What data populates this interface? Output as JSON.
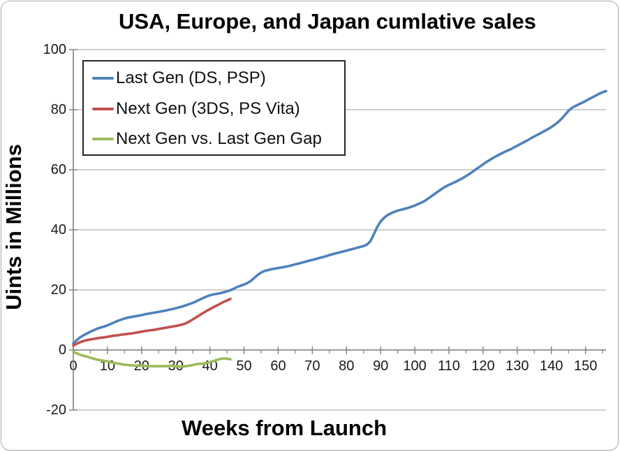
{
  "chart_data": {
    "type": "line",
    "title": "USA, Europe, and Japan cumlative sales",
    "xlabel": "Weeks from Launch",
    "ylabel": "Uints in Millions",
    "xlim": [
      0,
      156
    ],
    "ylim": [
      -20,
      100
    ],
    "x_ticks": [
      0,
      10,
      20,
      30,
      40,
      50,
      60,
      70,
      80,
      90,
      100,
      110,
      120,
      130,
      140,
      150
    ],
    "x_minor_tick_step": 5,
    "y_ticks": [
      -20,
      0,
      20,
      40,
      60,
      80,
      100
    ],
    "grid": "horizontal-only",
    "legend_position": "top-left-inside",
    "background": "#FFFFFF",
    "axis_color": "#7F7F7F",
    "gridline_color": "#B3B3B3",
    "series": [
      {
        "name": "Last Gen (DS, PSP)",
        "color": "#4F81BD",
        "points": [
          [
            0,
            2.2
          ],
          [
            1,
            3.3
          ],
          [
            2,
            4.2
          ],
          [
            3,
            4.9
          ],
          [
            4,
            5.5
          ],
          [
            5,
            6.1
          ],
          [
            6,
            6.6
          ],
          [
            7,
            7.1
          ],
          [
            8,
            7.5
          ],
          [
            9,
            7.8
          ],
          [
            10,
            8.2
          ],
          [
            11,
            8.7
          ],
          [
            12,
            9.2
          ],
          [
            13,
            9.7
          ],
          [
            14,
            10.1
          ],
          [
            15,
            10.5
          ],
          [
            16,
            10.8
          ],
          [
            17,
            11.0
          ],
          [
            18,
            11.2
          ],
          [
            19,
            11.4
          ],
          [
            20,
            11.6
          ],
          [
            21,
            11.9
          ],
          [
            22,
            12.1
          ],
          [
            23,
            12.3
          ],
          [
            24,
            12.5
          ],
          [
            25,
            12.7
          ],
          [
            26,
            12.9
          ],
          [
            27,
            13.1
          ],
          [
            28,
            13.4
          ],
          [
            29,
            13.6
          ],
          [
            30,
            13.9
          ],
          [
            31,
            14.2
          ],
          [
            32,
            14.5
          ],
          [
            33,
            14.9
          ],
          [
            34,
            15.3
          ],
          [
            35,
            15.7
          ],
          [
            36,
            16.2
          ],
          [
            37,
            16.8
          ],
          [
            38,
            17.3
          ],
          [
            39,
            17.8
          ],
          [
            40,
            18.2
          ],
          [
            41,
            18.5
          ],
          [
            42,
            18.7
          ],
          [
            43,
            18.9
          ],
          [
            44,
            19.2
          ],
          [
            45,
            19.5
          ],
          [
            46,
            19.9
          ],
          [
            47,
            20.4
          ],
          [
            48,
            21.0
          ],
          [
            49,
            21.4
          ],
          [
            50,
            21.8
          ],
          [
            51,
            22.3
          ],
          [
            52,
            23.0
          ],
          [
            53,
            24.0
          ],
          [
            54,
            25.0
          ],
          [
            55,
            25.8
          ],
          [
            56,
            26.3
          ],
          [
            57,
            26.6
          ],
          [
            58,
            26.9
          ],
          [
            59,
            27.1
          ],
          [
            60,
            27.3
          ],
          [
            61,
            27.5
          ],
          [
            62,
            27.7
          ],
          [
            63,
            27.9
          ],
          [
            64,
            28.2
          ],
          [
            65,
            28.5
          ],
          [
            66,
            28.8
          ],
          [
            67,
            29.1
          ],
          [
            68,
            29.4
          ],
          [
            69,
            29.7
          ],
          [
            70,
            30.0
          ],
          [
            71,
            30.3
          ],
          [
            72,
            30.6
          ],
          [
            73,
            30.9
          ],
          [
            74,
            31.2
          ],
          [
            75,
            31.6
          ],
          [
            76,
            31.9
          ],
          [
            77,
            32.2
          ],
          [
            78,
            32.5
          ],
          [
            79,
            32.8
          ],
          [
            80,
            33.1
          ],
          [
            81,
            33.4
          ],
          [
            82,
            33.7
          ],
          [
            83,
            34.0
          ],
          [
            84,
            34.3
          ],
          [
            85,
            34.6
          ],
          [
            86,
            35.1
          ],
          [
            87,
            36.2
          ],
          [
            88,
            38.5
          ],
          [
            89,
            41.0
          ],
          [
            90,
            42.8
          ],
          [
            91,
            44.0
          ],
          [
            92,
            44.9
          ],
          [
            93,
            45.5
          ],
          [
            94,
            46.0
          ],
          [
            95,
            46.4
          ],
          [
            96,
            46.7
          ],
          [
            97,
            47.0
          ],
          [
            98,
            47.3
          ],
          [
            99,
            47.7
          ],
          [
            100,
            48.1
          ],
          [
            101,
            48.6
          ],
          [
            102,
            49.1
          ],
          [
            103,
            49.7
          ],
          [
            104,
            50.5
          ],
          [
            105,
            51.3
          ],
          [
            106,
            52.1
          ],
          [
            107,
            52.9
          ],
          [
            108,
            53.7
          ],
          [
            109,
            54.4
          ],
          [
            110,
            55.0
          ],
          [
            111,
            55.5
          ],
          [
            112,
            56.0
          ],
          [
            113,
            56.6
          ],
          [
            114,
            57.2
          ],
          [
            115,
            57.9
          ],
          [
            116,
            58.6
          ],
          [
            117,
            59.4
          ],
          [
            118,
            60.2
          ],
          [
            119,
            61.0
          ],
          [
            120,
            61.8
          ],
          [
            121,
            62.6
          ],
          [
            122,
            63.3
          ],
          [
            123,
            64.0
          ],
          [
            124,
            64.6
          ],
          [
            125,
            65.2
          ],
          [
            126,
            65.8
          ],
          [
            127,
            66.3
          ],
          [
            128,
            66.8
          ],
          [
            129,
            67.4
          ],
          [
            130,
            68.0
          ],
          [
            131,
            68.6
          ],
          [
            132,
            69.2
          ],
          [
            133,
            69.8
          ],
          [
            134,
            70.5
          ],
          [
            135,
            71.1
          ],
          [
            136,
            71.7
          ],
          [
            137,
            72.3
          ],
          [
            138,
            72.9
          ],
          [
            139,
            73.5
          ],
          [
            140,
            74.2
          ],
          [
            141,
            75.0
          ],
          [
            142,
            75.9
          ],
          [
            143,
            77.0
          ],
          [
            144,
            78.3
          ],
          [
            145,
            79.6
          ],
          [
            146,
            80.6
          ],
          [
            147,
            81.2
          ],
          [
            148,
            81.8
          ],
          [
            149,
            82.3
          ],
          [
            150,
            82.9
          ],
          [
            151,
            83.5
          ],
          [
            152,
            84.1
          ],
          [
            153,
            84.7
          ],
          [
            154,
            85.3
          ],
          [
            155,
            85.8
          ],
          [
            156,
            86.2
          ]
        ]
      },
      {
        "name": "Next Gen (3DS, PS Vita)",
        "color": "#C0504D",
        "points": [
          [
            0,
            1.5
          ],
          [
            1,
            2.1
          ],
          [
            2,
            2.6
          ],
          [
            3,
            3.0
          ],
          [
            4,
            3.3
          ],
          [
            5,
            3.5
          ],
          [
            6,
            3.7
          ],
          [
            7,
            3.9
          ],
          [
            8,
            4.1
          ],
          [
            9,
            4.2
          ],
          [
            10,
            4.4
          ],
          [
            11,
            4.6
          ],
          [
            12,
            4.8
          ],
          [
            13,
            4.9
          ],
          [
            14,
            5.1
          ],
          [
            15,
            5.2
          ],
          [
            16,
            5.4
          ],
          [
            17,
            5.5
          ],
          [
            18,
            5.7
          ],
          [
            19,
            5.9
          ],
          [
            20,
            6.1
          ],
          [
            21,
            6.3
          ],
          [
            22,
            6.5
          ],
          [
            23,
            6.6
          ],
          [
            24,
            6.8
          ],
          [
            25,
            7.0
          ],
          [
            26,
            7.2
          ],
          [
            27,
            7.4
          ],
          [
            28,
            7.6
          ],
          [
            29,
            7.8
          ],
          [
            30,
            8.0
          ],
          [
            31,
            8.2
          ],
          [
            32,
            8.5
          ],
          [
            33,
            8.9
          ],
          [
            34,
            9.5
          ],
          [
            35,
            10.2
          ],
          [
            36,
            10.9
          ],
          [
            37,
            11.6
          ],
          [
            38,
            12.3
          ],
          [
            39,
            13.0
          ],
          [
            40,
            13.6
          ],
          [
            41,
            14.2
          ],
          [
            42,
            14.8
          ],
          [
            43,
            15.4
          ],
          [
            44,
            16.0
          ],
          [
            45,
            16.5
          ],
          [
            46,
            17.0
          ]
        ]
      },
      {
        "name": "Next Gen vs. Last Gen Gap",
        "color": "#9BBB59",
        "points": [
          [
            0,
            -0.6
          ],
          [
            1,
            -1.1
          ],
          [
            2,
            -1.6
          ],
          [
            3,
            -1.9
          ],
          [
            4,
            -2.2
          ],
          [
            5,
            -2.6
          ],
          [
            6,
            -2.9
          ],
          [
            7,
            -3.2
          ],
          [
            8,
            -3.4
          ],
          [
            9,
            -3.6
          ],
          [
            10,
            -3.8
          ],
          [
            11,
            -4.1
          ],
          [
            12,
            -4.3
          ],
          [
            13,
            -4.5
          ],
          [
            14,
            -4.7
          ],
          [
            15,
            -4.9
          ],
          [
            16,
            -5.0
          ],
          [
            17,
            -5.1
          ],
          [
            18,
            -5.2
          ],
          [
            19,
            -5.2
          ],
          [
            20,
            -5.2
          ],
          [
            21,
            -5.3
          ],
          [
            22,
            -5.3
          ],
          [
            23,
            -5.4
          ],
          [
            24,
            -5.4
          ],
          [
            25,
            -5.4
          ],
          [
            26,
            -5.4
          ],
          [
            27,
            -5.4
          ],
          [
            28,
            -5.3
          ],
          [
            29,
            -5.3
          ],
          [
            30,
            -5.4
          ],
          [
            31,
            -5.5
          ],
          [
            32,
            -5.5
          ],
          [
            33,
            -5.4
          ],
          [
            34,
            -5.2
          ],
          [
            35,
            -5.0
          ],
          [
            36,
            -4.7
          ],
          [
            37,
            -4.6
          ],
          [
            38,
            -4.5
          ],
          [
            39,
            -4.3
          ],
          [
            40,
            -4.0
          ],
          [
            41,
            -3.7
          ],
          [
            42,
            -3.3
          ],
          [
            43,
            -3.0
          ],
          [
            44,
            -2.8
          ],
          [
            45,
            -2.9
          ],
          [
            46,
            -3.1
          ]
        ]
      }
    ]
  },
  "legend": {
    "items": [
      {
        "label": "Last Gen (DS, PSP)"
      },
      {
        "label": "Next Gen (3DS, PS Vita)"
      },
      {
        "label": "Next Gen vs. Last Gen Gap"
      }
    ]
  }
}
